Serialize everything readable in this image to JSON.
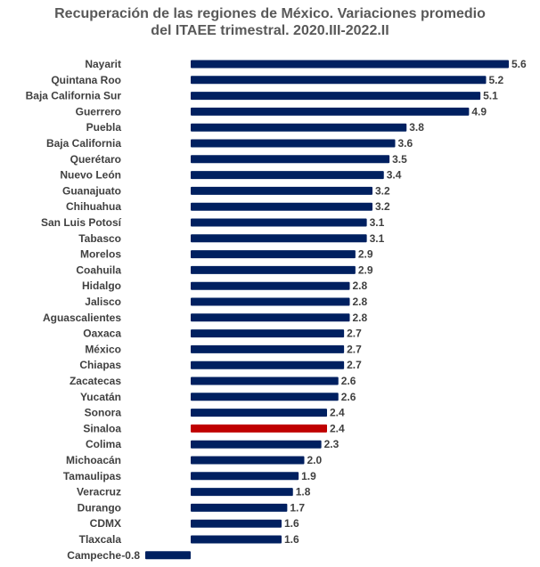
{
  "chart_data": {
    "type": "bar",
    "orientation": "horizontal",
    "title_line1": "Recuperación de las regiones de México. Variaciones promedio",
    "title_line2": "del ITAEE trimestral. 2020.III-2022.II",
    "xlabel": "",
    "ylabel": "",
    "grid": false,
    "colors": {
      "default": "#002060",
      "highlight": "#C00000"
    },
    "highlight": "Sinaloa",
    "categories": [
      "Nayarit",
      "Quintana Roo",
      "Baja California Sur",
      "Guerrero",
      "Puebla",
      "Baja California",
      "Querétaro",
      "Nuevo León",
      "Guanajuato",
      "Chihuahua",
      "San Luis Potosí",
      "Tabasco",
      "Morelos",
      "Coahuila",
      "Hidalgo",
      "Jalisco",
      "Aguascalientes",
      "Oaxaca",
      "México",
      "Chiapas",
      "Zacatecas",
      "Yucatán",
      "Sonora",
      "Sinaloa",
      "Colima",
      "Michoacán",
      "Tamaulipas",
      "Veracruz",
      "Durango",
      "CDMX",
      "Tlaxcala",
      "Campeche"
    ],
    "values": [
      5.6,
      5.2,
      5.1,
      4.9,
      3.8,
      3.6,
      3.5,
      3.4,
      3.2,
      3.2,
      3.1,
      3.1,
      2.9,
      2.9,
      2.8,
      2.8,
      2.8,
      2.7,
      2.7,
      2.7,
      2.6,
      2.6,
      2.4,
      2.4,
      2.3,
      2.0,
      1.9,
      1.8,
      1.7,
      1.6,
      1.6,
      -0.8
    ]
  }
}
